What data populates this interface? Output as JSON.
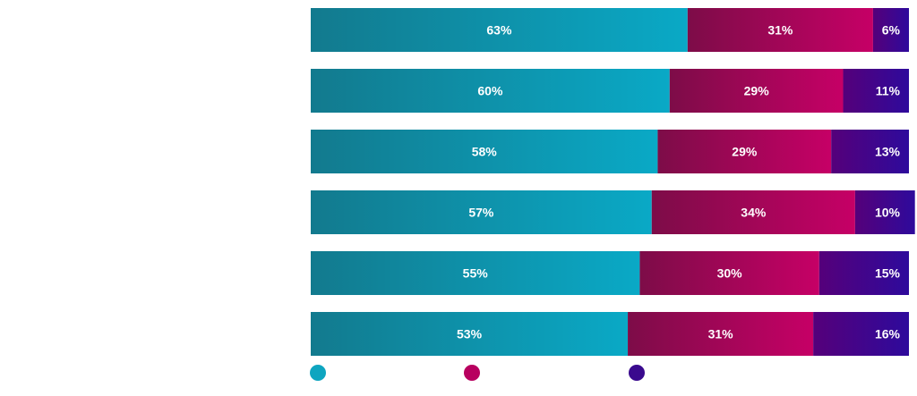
{
  "chart_data": {
    "type": "bar",
    "orientation": "horizontal",
    "stacked": true,
    "categories": [
      "",
      "",
      "",
      "",
      "",
      ""
    ],
    "series": [
      {
        "name": "",
        "values": [
          63,
          60,
          58,
          57,
          55,
          53
        ],
        "color": "#0ea5c0"
      },
      {
        "name": "",
        "values": [
          31,
          29,
          29,
          34,
          30,
          31
        ],
        "color": "#b8005f"
      },
      {
        "name": "",
        "values": [
          6,
          11,
          13,
          10,
          15,
          16
        ],
        "color": "#3a0a8e"
      }
    ],
    "data_labels": [
      [
        "63%",
        "31%",
        "6%"
      ],
      [
        "60%",
        "29%",
        "11%"
      ],
      [
        "58%",
        "29%",
        "13%"
      ],
      [
        "57%",
        "34%",
        "10%"
      ],
      [
        "55%",
        "30%",
        "15%"
      ],
      [
        "53%",
        "31%",
        "16%"
      ]
    ],
    "xlim": [
      0,
      100
    ],
    "grid": false,
    "legend_position": "bottom"
  }
}
